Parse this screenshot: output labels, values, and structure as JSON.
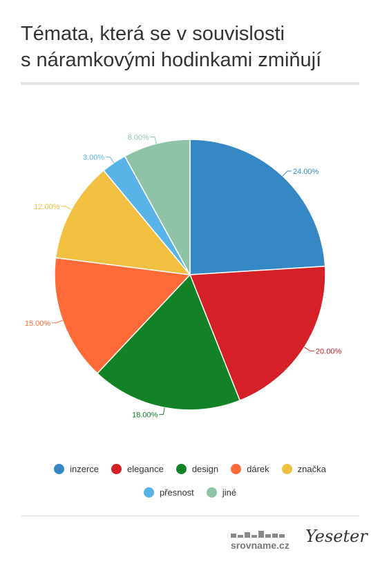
{
  "chart_data": {
    "type": "pie",
    "title": [
      "Témata, která se v souvislosti",
      "s náramkovými hodinkami zmiňují"
    ],
    "categories": [
      "inzerce",
      "elegance",
      "design",
      "dárek",
      "značka",
      "přesnost",
      "jiné"
    ],
    "values": [
      24,
      20,
      18,
      15,
      12,
      3,
      8
    ],
    "value_labels": [
      "24.00%",
      "20.00%",
      "18.00%",
      "15.00%",
      "12.00%",
      "3.00%",
      "8.00%"
    ],
    "colors": [
      "#3588c4",
      "#d42026",
      "#138227",
      "#fe6a38",
      "#f2c040",
      "#5ab3e6",
      "#8ec3a8"
    ],
    "legend": "bottom"
  },
  "footer": {
    "logos": [
      "srovname.cz",
      "Yeseter"
    ]
  }
}
